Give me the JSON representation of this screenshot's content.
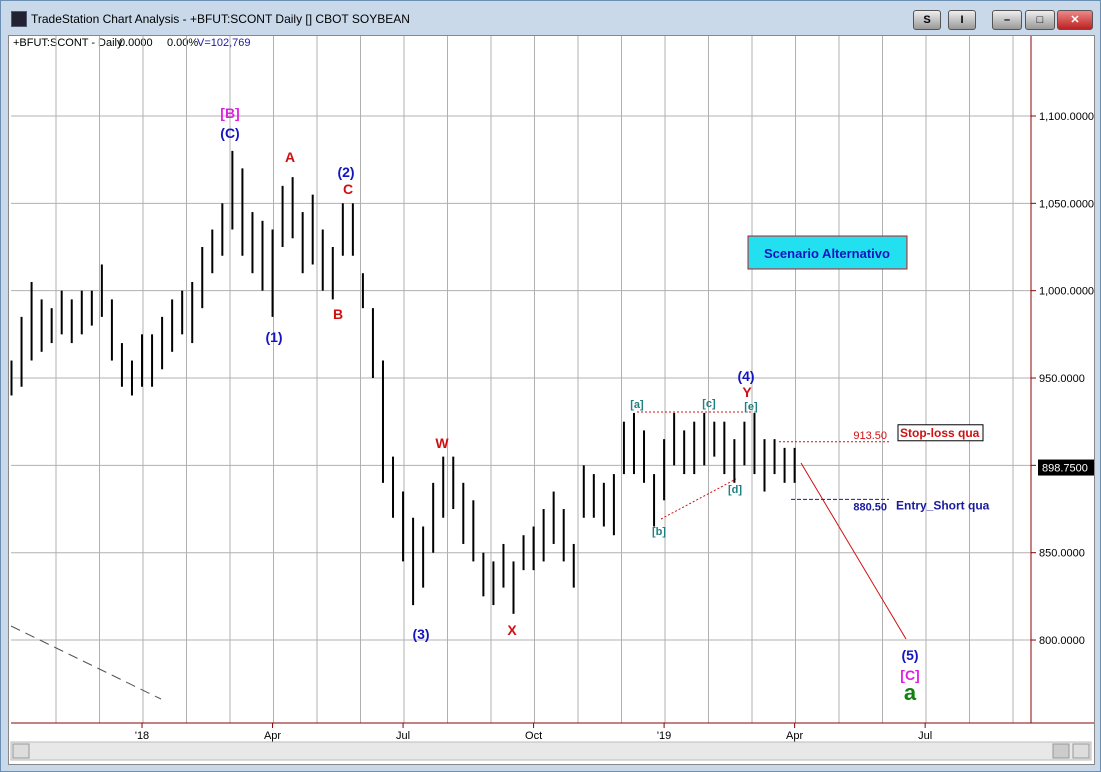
{
  "window": {
    "title": "TradeStation Chart Analysis - +BFUT:SCONT Daily [] CBOT SOYBEAN",
    "buttons": [
      "S",
      "I"
    ]
  },
  "chart_data": {
    "type": "ohlc",
    "header": [
      "+BFUT:SCONT - Daily",
      "0.0000",
      "0.00%",
      "V=102,769"
    ],
    "color": "#000000",
    "grid": true,
    "categories": [
      null,
      null,
      null,
      null,
      null,
      null,
      null,
      null,
      null,
      null,
      null,
      null,
      null,
      "'18",
      null,
      null,
      null,
      null,
      null,
      null,
      null,
      null,
      null,
      null,
      null,
      null,
      "Apr",
      null,
      null,
      null,
      null,
      null,
      null,
      null,
      null,
      null,
      null,
      null,
      null,
      "Jul",
      null,
      null,
      null,
      null,
      null,
      null,
      null,
      null,
      null,
      null,
      null,
      null,
      "Oct",
      null,
      null,
      null,
      null,
      null,
      null,
      null,
      null,
      null,
      null,
      null,
      null,
      "'19",
      null,
      null,
      null,
      null,
      null,
      null,
      null,
      null,
      null,
      null,
      null,
      null,
      "Apr",
      null,
      null,
      null,
      null,
      null,
      null,
      null,
      null,
      null,
      null,
      null,
      null,
      "Jul",
      null,
      null,
      null,
      null,
      null,
      null,
      null,
      null,
      null,
      null
    ],
    "high": [
      960,
      985,
      1005,
      995,
      990,
      1000,
      995,
      1000,
      1000,
      1015,
      995,
      970,
      960,
      975,
      975,
      985,
      995,
      1000,
      1005,
      1025,
      1035,
      1050,
      1080,
      1070,
      1045,
      1040,
      1035,
      1060,
      1065,
      1045,
      1055,
      1035,
      1025,
      1050,
      1050,
      1010,
      990,
      960,
      905,
      885,
      870,
      865,
      890,
      905,
      905,
      890,
      880,
      850,
      845,
      855,
      845,
      860,
      865,
      875,
      885,
      875,
      855,
      900,
      895,
      890,
      895,
      925,
      930,
      920,
      895,
      915,
      930,
      920,
      925,
      930,
      925,
      925,
      915,
      925,
      930,
      915,
      915,
      910,
      910,
      null,
      null,
      null,
      null,
      null,
      null,
      null,
      null,
      null,
      null,
      null,
      null,
      null,
      null,
      null,
      null,
      null,
      null,
      null,
      null,
      null,
      null,
      null
    ],
    "low": [
      940,
      945,
      960,
      965,
      970,
      975,
      970,
      975,
      980,
      985,
      960,
      945,
      940,
      945,
      945,
      955,
      965,
      975,
      970,
      990,
      1010,
      1020,
      1035,
      1020,
      1010,
      1000,
      985,
      1025,
      1030,
      1010,
      1015,
      1000,
      995,
      1020,
      1020,
      990,
      950,
      890,
      870,
      845,
      820,
      830,
      850,
      870,
      875,
      855,
      845,
      825,
      820,
      830,
      815,
      840,
      840,
      845,
      855,
      845,
      830,
      870,
      870,
      865,
      860,
      895,
      895,
      890,
      865,
      880,
      900,
      895,
      895,
      900,
      905,
      895,
      890,
      900,
      895,
      885,
      895,
      890,
      890,
      null,
      null,
      null,
      null,
      null,
      null,
      null,
      null,
      null,
      null,
      null,
      null,
      null,
      null,
      null,
      null,
      null,
      null,
      null,
      null,
      null,
      null,
      null
    ],
    "ylim": [
      752.5,
      1145.8
    ],
    "yticks": [
      {
        "value": 800,
        "label": "800.0000"
      },
      {
        "value": 850,
        "label": "850.0000"
      },
      {
        "value": 900,
        "label": "900.0000"
      },
      {
        "value": 950,
        "label": "950.0000"
      },
      {
        "value": 1000,
        "label": "1,000.0000"
      },
      {
        "value": 1050,
        "label": "1,050.0000"
      },
      {
        "value": 1100,
        "label": "1,100.0000"
      }
    ],
    "last_price": {
      "value": 898.75,
      "label": "898.7500"
    },
    "levels": [
      {
        "value": 913.5,
        "label": "913.50",
        "name": "Stop-loss qua",
        "color": "#d01010"
      },
      {
        "value": 880.5,
        "label": "880.50",
        "name": "Entry_Short qua",
        "color": "#1a1aa0"
      }
    ],
    "scenario": "Scenario Alternativo",
    "annotations": [
      {
        "text": "[B]",
        "color": "#e020e0"
      },
      {
        "text": "(C)",
        "color": "#1515c0"
      },
      {
        "text": "A",
        "color": "#d01010"
      },
      {
        "text": "(2)",
        "color": "#1515c0"
      },
      {
        "text": "C",
        "color": "#d01010"
      },
      {
        "text": "(1)",
        "color": "#1515c0"
      },
      {
        "text": "B",
        "color": "#d01010"
      },
      {
        "text": "W",
        "color": "#d01010"
      },
      {
        "text": "(3)",
        "color": "#1515c0"
      },
      {
        "text": "X",
        "color": "#d01010"
      },
      {
        "text": "[a]",
        "color": "#208080"
      },
      {
        "text": "[b]",
        "color": "#208080"
      },
      {
        "text": "[c]",
        "color": "#208080"
      },
      {
        "text": "[d]",
        "color": "#208080"
      },
      {
        "text": "[e]",
        "color": "#208080"
      },
      {
        "text": "(4)",
        "color": "#1515c0"
      },
      {
        "text": "Y",
        "color": "#d01010"
      },
      {
        "text": "(5)",
        "color": "#1515c0"
      },
      {
        "text": "[C]",
        "color": "#e020e0"
      },
      {
        "text": "a",
        "color": "#108010"
      }
    ]
  }
}
